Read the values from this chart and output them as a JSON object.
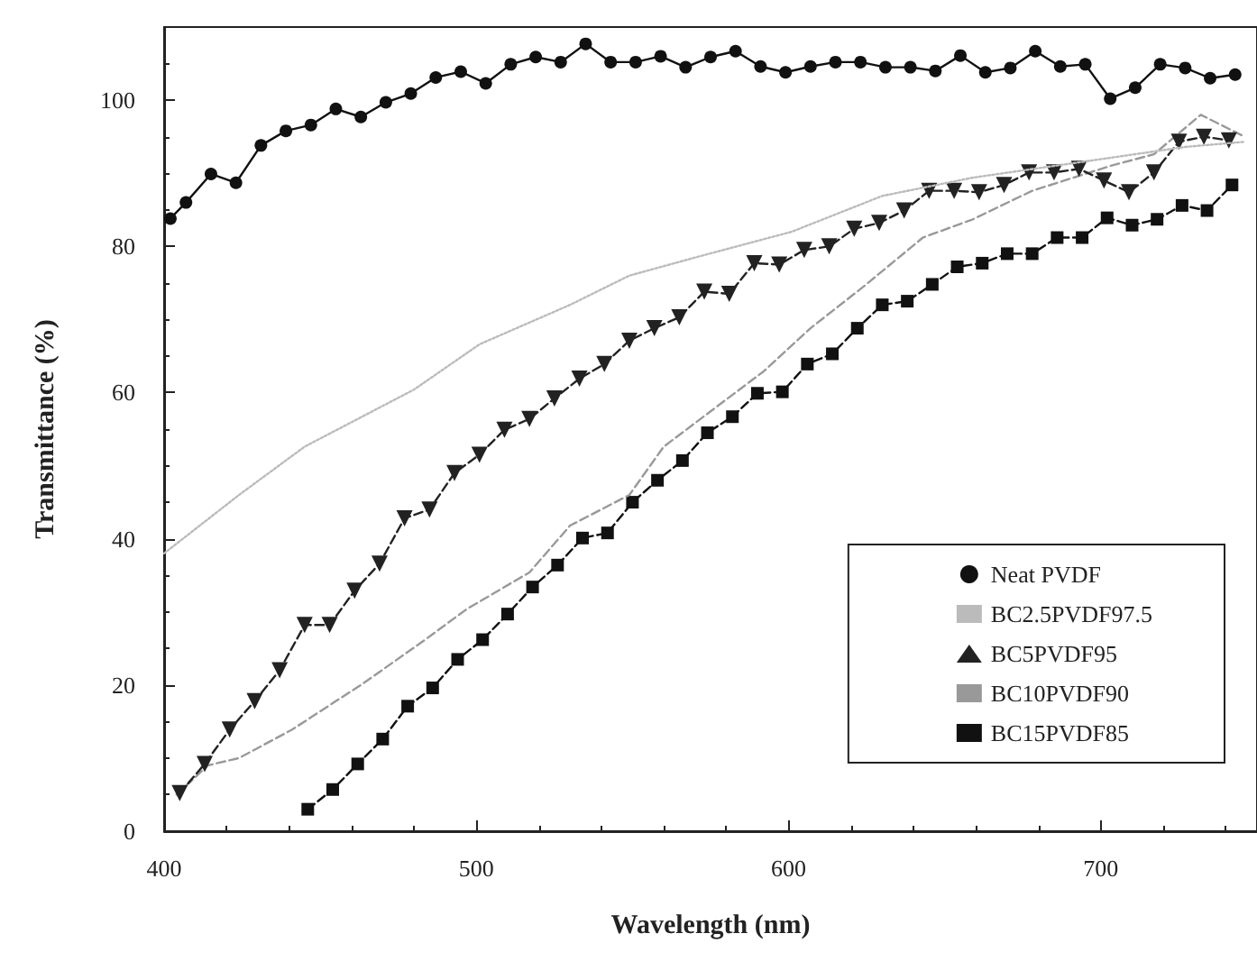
{
  "chart_data": {
    "type": "line",
    "xlabel": "Wavelength (nm)",
    "ylabel": "Transmittance (%)",
    "xlim": [
      400,
      750
    ],
    "xticks": [
      400,
      500,
      600,
      700
    ],
    "ylim": [
      0,
      110
    ],
    "yticks": [
      0,
      20,
      40,
      60,
      80,
      100
    ],
    "grid": false,
    "legend": "bottom right",
    "series": [
      {
        "name": "Neat PVDF",
        "color": "#111111",
        "marker": "circle",
        "line_style": "solid",
        "x": [
          402,
          407,
          415,
          423,
          431,
          439,
          447,
          455,
          463,
          471,
          479,
          487,
          495,
          503,
          511,
          519,
          527,
          535,
          543,
          551,
          559,
          567,
          575,
          583,
          591,
          599,
          607,
          615,
          623,
          631,
          639,
          647,
          655,
          663,
          671,
          679,
          687,
          695,
          703,
          711,
          719,
          727,
          735,
          743
        ],
        "values": [
          83.8,
          86.0,
          89.9,
          88.7,
          93.8,
          95.8,
          96.6,
          98.8,
          97.7,
          99.7,
          100.9,
          103.1,
          103.9,
          102.3,
          104.9,
          105.9,
          105.2,
          107.7,
          105.2,
          105.2,
          106.0,
          104.5,
          105.9,
          106.7,
          104.6,
          103.8,
          104.6,
          105.2,
          105.2,
          104.5,
          104.5,
          104.0,
          106.1,
          103.8,
          104.4,
          106.7,
          104.6,
          104.9,
          100.2,
          101.7,
          104.9,
          104.4,
          103.0,
          103.5
        ]
      },
      {
        "name": "BC2.5PVDF97.5",
        "color": "#bbbbbb",
        "marker": "none",
        "line_style": "dotted",
        "x": [
          400,
          424,
          445,
          480,
          501,
          530,
          549,
          572,
          601,
          630,
          659,
          698,
          727,
          746
        ],
        "values": [
          38,
          46,
          52.6,
          60.4,
          66.6,
          72,
          76,
          78.7,
          82,
          86.9,
          89.4,
          91.8,
          93.6,
          94.3
        ]
      },
      {
        "name": "BC5PVDF95",
        "color": "#222222",
        "marker": "triangle",
        "line_style": "dashed",
        "x": [
          405,
          413,
          421,
          429,
          437,
          445,
          453,
          461,
          469,
          477,
          485,
          493,
          501,
          509,
          517,
          525,
          533,
          541,
          549,
          557,
          565,
          573,
          581,
          589,
          597,
          605,
          613,
          621,
          629,
          637,
          645,
          653,
          661,
          669,
          677,
          685,
          693,
          701,
          709,
          717,
          725,
          733,
          741
        ],
        "values": [
          5.2,
          9.2,
          13.9,
          17.8,
          22,
          28.2,
          28.2,
          32.9,
          36.6,
          42.8,
          44,
          49,
          51.5,
          54.9,
          56.4,
          59.2,
          61.9,
          63.9,
          67.1,
          68.8,
          70.3,
          73.8,
          73.5,
          77.7,
          77.5,
          79.5,
          80,
          82.4,
          83.2,
          84.9,
          87.6,
          87.6,
          87.4,
          88.4,
          90.1,
          90.1,
          90.6,
          89,
          87.4,
          90.1,
          94.3,
          95,
          94.5
        ]
      },
      {
        "name": "BC10PVDF90",
        "color": "#999999",
        "marker": "none",
        "line_style": "dashed",
        "x": [
          404,
          414,
          424,
          441,
          463,
          482,
          497,
          517,
          530,
          549,
          560,
          592,
          607,
          624,
          643,
          659,
          678,
          703,
          717,
          732,
          746
        ],
        "values": [
          5,
          9,
          10,
          13.9,
          20,
          25.7,
          30.4,
          35.4,
          41.8,
          46,
          52.6,
          62.9,
          68.8,
          74.5,
          81.2,
          83.7,
          87.6,
          91,
          92.6,
          98,
          95
        ]
      },
      {
        "name": "BC15PVDF85",
        "color": "#111111",
        "marker": "square",
        "line_style": "dashed",
        "x": [
          446,
          454,
          462,
          470,
          478,
          486,
          494,
          502,
          510,
          518,
          526,
          534,
          542,
          550,
          558,
          566,
          574,
          582,
          590,
          598,
          606,
          614,
          622,
          630,
          638,
          646,
          654,
          662,
          670,
          678,
          686,
          694,
          702,
          710,
          718,
          726,
          734,
          742
        ],
        "values": [
          3,
          5.7,
          9.2,
          12.6,
          17.1,
          19.6,
          23.5,
          26.2,
          29.7,
          33.4,
          36.4,
          40.1,
          40.8,
          45,
          48,
          50.7,
          54.5,
          56.7,
          59.9,
          60.1,
          63.9,
          65.3,
          68.8,
          72,
          72.5,
          74.8,
          77.2,
          77.7,
          79,
          79,
          81.2,
          81.2,
          83.9,
          82.9,
          83.7,
          85.6,
          84.9,
          88.4
        ]
      }
    ]
  }
}
